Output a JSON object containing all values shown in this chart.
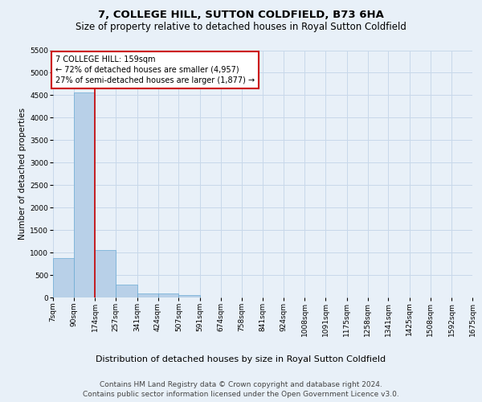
{
  "title": "7, COLLEGE HILL, SUTTON COLDFIELD, B73 6HA",
  "subtitle": "Size of property relative to detached houses in Royal Sutton Coldfield",
  "xlabel": "Distribution of detached houses by size in Royal Sutton Coldfield",
  "ylabel": "Number of detached properties",
  "footer_line1": "Contains HM Land Registry data © Crown copyright and database right 2024.",
  "footer_line2": "Contains public sector information licensed under the Open Government Licence v3.0.",
  "bin_labels": [
    "7sqm",
    "90sqm",
    "174sqm",
    "257sqm",
    "341sqm",
    "424sqm",
    "507sqm",
    "591sqm",
    "674sqm",
    "758sqm",
    "841sqm",
    "924sqm",
    "1008sqm",
    "1091sqm",
    "1175sqm",
    "1258sqm",
    "1341sqm",
    "1425sqm",
    "1508sqm",
    "1592sqm",
    "1675sqm"
  ],
  "bar_values": [
    880,
    4560,
    1060,
    290,
    90,
    85,
    50,
    0,
    0,
    0,
    0,
    0,
    0,
    0,
    0,
    0,
    0,
    0,
    0,
    0,
    0
  ],
  "bar_color": "#b8d0e8",
  "bar_edge_color": "#6aaad4",
  "grid_color": "#c8d8ea",
  "background_color": "#e8f0f8",
  "annotation_box_text": "7 COLLEGE HILL: 159sqm\n← 72% of detached houses are smaller (4,957)\n27% of semi-detached houses are larger (1,877) →",
  "annotation_box_color": "#ffffff",
  "annotation_box_edge_color": "#cc0000",
  "bin_edges": [
    7,
    90,
    174,
    257,
    341,
    424,
    507,
    591,
    674,
    758,
    841,
    924,
    1008,
    1091,
    1175,
    1258,
    1341,
    1425,
    1508,
    1592,
    1675
  ],
  "property_line_x": 174,
  "ylim": [
    0,
    5500
  ],
  "yticks": [
    0,
    500,
    1000,
    1500,
    2000,
    2500,
    3000,
    3500,
    4000,
    4500,
    5000,
    5500
  ],
  "red_line_color": "#cc0000",
  "title_fontsize": 9.5,
  "subtitle_fontsize": 8.5,
  "xlabel_fontsize": 8,
  "ylabel_fontsize": 7.5,
  "tick_fontsize": 6.5,
  "annotation_fontsize": 7,
  "footer_fontsize": 6.5
}
